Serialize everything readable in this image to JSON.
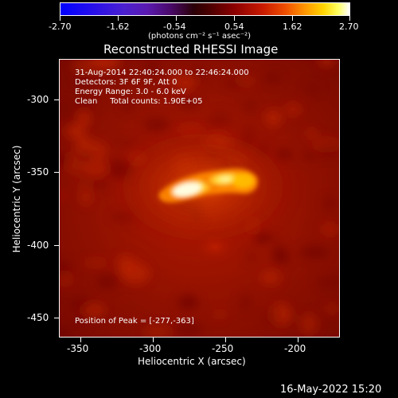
{
  "colorbar": {
    "ticks": [
      "-2.70",
      "-1.62",
      "-0.54",
      "0.54",
      "1.62",
      "2.70"
    ],
    "unit_label": "(photons cm⁻² s⁻¹ asec⁻²)"
  },
  "title": "Reconstructed RHESSI Image",
  "info": {
    "time": "31-Aug-2014 22:40:24.000 to 22:46:24.000",
    "detectors": "Detectors: 3F 6F 9F, Att 0",
    "energy": "Energy Range: 3.0 - 6.0 keV",
    "clean": "Clean     Total counts: 1.90E+05",
    "peak": "Position of Peak = [-277,-363]"
  },
  "axes": {
    "xlabel": "Heliocentric X (arcsec)",
    "ylabel": "Heliocentric Y (arcsec)",
    "xticks": [
      "-350",
      "-300",
      "-250",
      "-200"
    ],
    "yticks": [
      "-300",
      "-350",
      "-400",
      "-450"
    ]
  },
  "timestamp": "16-May-2022 15:20",
  "colors": {
    "background": "#000000",
    "image_base": "#8a0f00",
    "source_core": "#fff2a0"
  }
}
